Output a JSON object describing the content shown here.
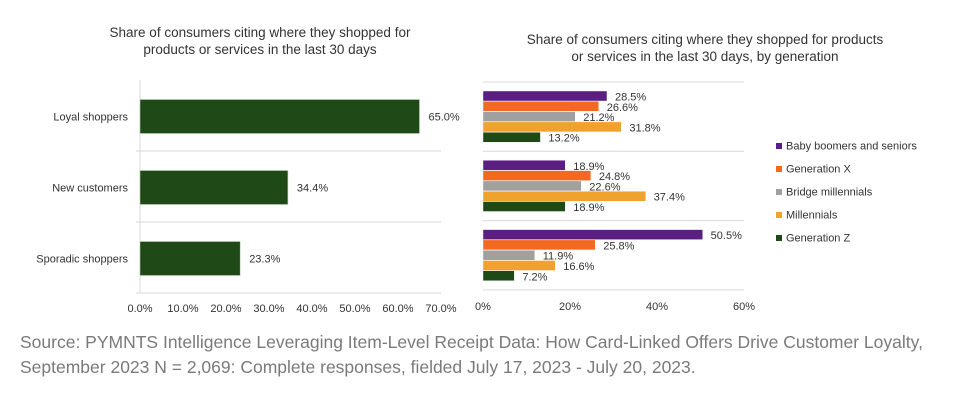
{
  "chart_data": [
    {
      "type": "bar",
      "orientation": "horizontal",
      "title": "Share of consumers citing where they shopped for products or services in the last 30 days",
      "title_lines": [
        "Share of consumers citing where they shopped for",
        "products or services in the last 30 days"
      ],
      "categories": [
        "Loyal shoppers",
        "New customers",
        "Sporadic shoppers"
      ],
      "values": [
        65.0,
        34.4,
        23.3
      ],
      "data_labels": [
        "65.0%",
        "34.4%",
        "23.3%"
      ],
      "color": "#1f4a17",
      "xlim": [
        0,
        70
      ],
      "x_ticks": [
        "0.0%",
        "10.0%",
        "20.0%",
        "30.0%",
        "40.0%",
        "50.0%",
        "60.0%",
        "70.0%"
      ],
      "grid": "horizontal separators"
    },
    {
      "type": "bar",
      "orientation": "horizontal",
      "title": "Share of consumers citing where they shopped for products or services in the last 30 days, by generation",
      "title_lines": [
        "Share of consumers citing where they shopped for products",
        "or services in the last 30 days, by generation"
      ],
      "groups": 3,
      "series": [
        {
          "name": "Baby boomers and seniors",
          "color": "#5b1f82",
          "values": [
            28.5,
            18.9,
            50.5
          ]
        },
        {
          "name": "Generation X",
          "color": "#f26a22",
          "values": [
            26.6,
            24.8,
            25.8
          ]
        },
        {
          "name": "Bridge millennials",
          "color": "#a0a0a0",
          "values": [
            21.2,
            22.6,
            11.9
          ]
        },
        {
          "name": "Millennials",
          "color": "#f0a22e",
          "values": [
            31.8,
            37.4,
            16.6
          ]
        },
        {
          "name": "Generation Z",
          "color": "#1f4a17",
          "values": [
            13.2,
            18.9,
            7.2
          ]
        }
      ],
      "xlim": [
        0,
        60
      ],
      "x_ticks": [
        "0%",
        "20%",
        "40%",
        "60%"
      ],
      "legend": "right"
    }
  ],
  "source": "Source: PYMNTS Intelligence Leveraging Item-Level Receipt Data: How Card-Linked Offers Drive Customer Loyalty, September 2023 N = 2,069: Complete responses, fielded July 17, 2023 - July 20, 2023."
}
